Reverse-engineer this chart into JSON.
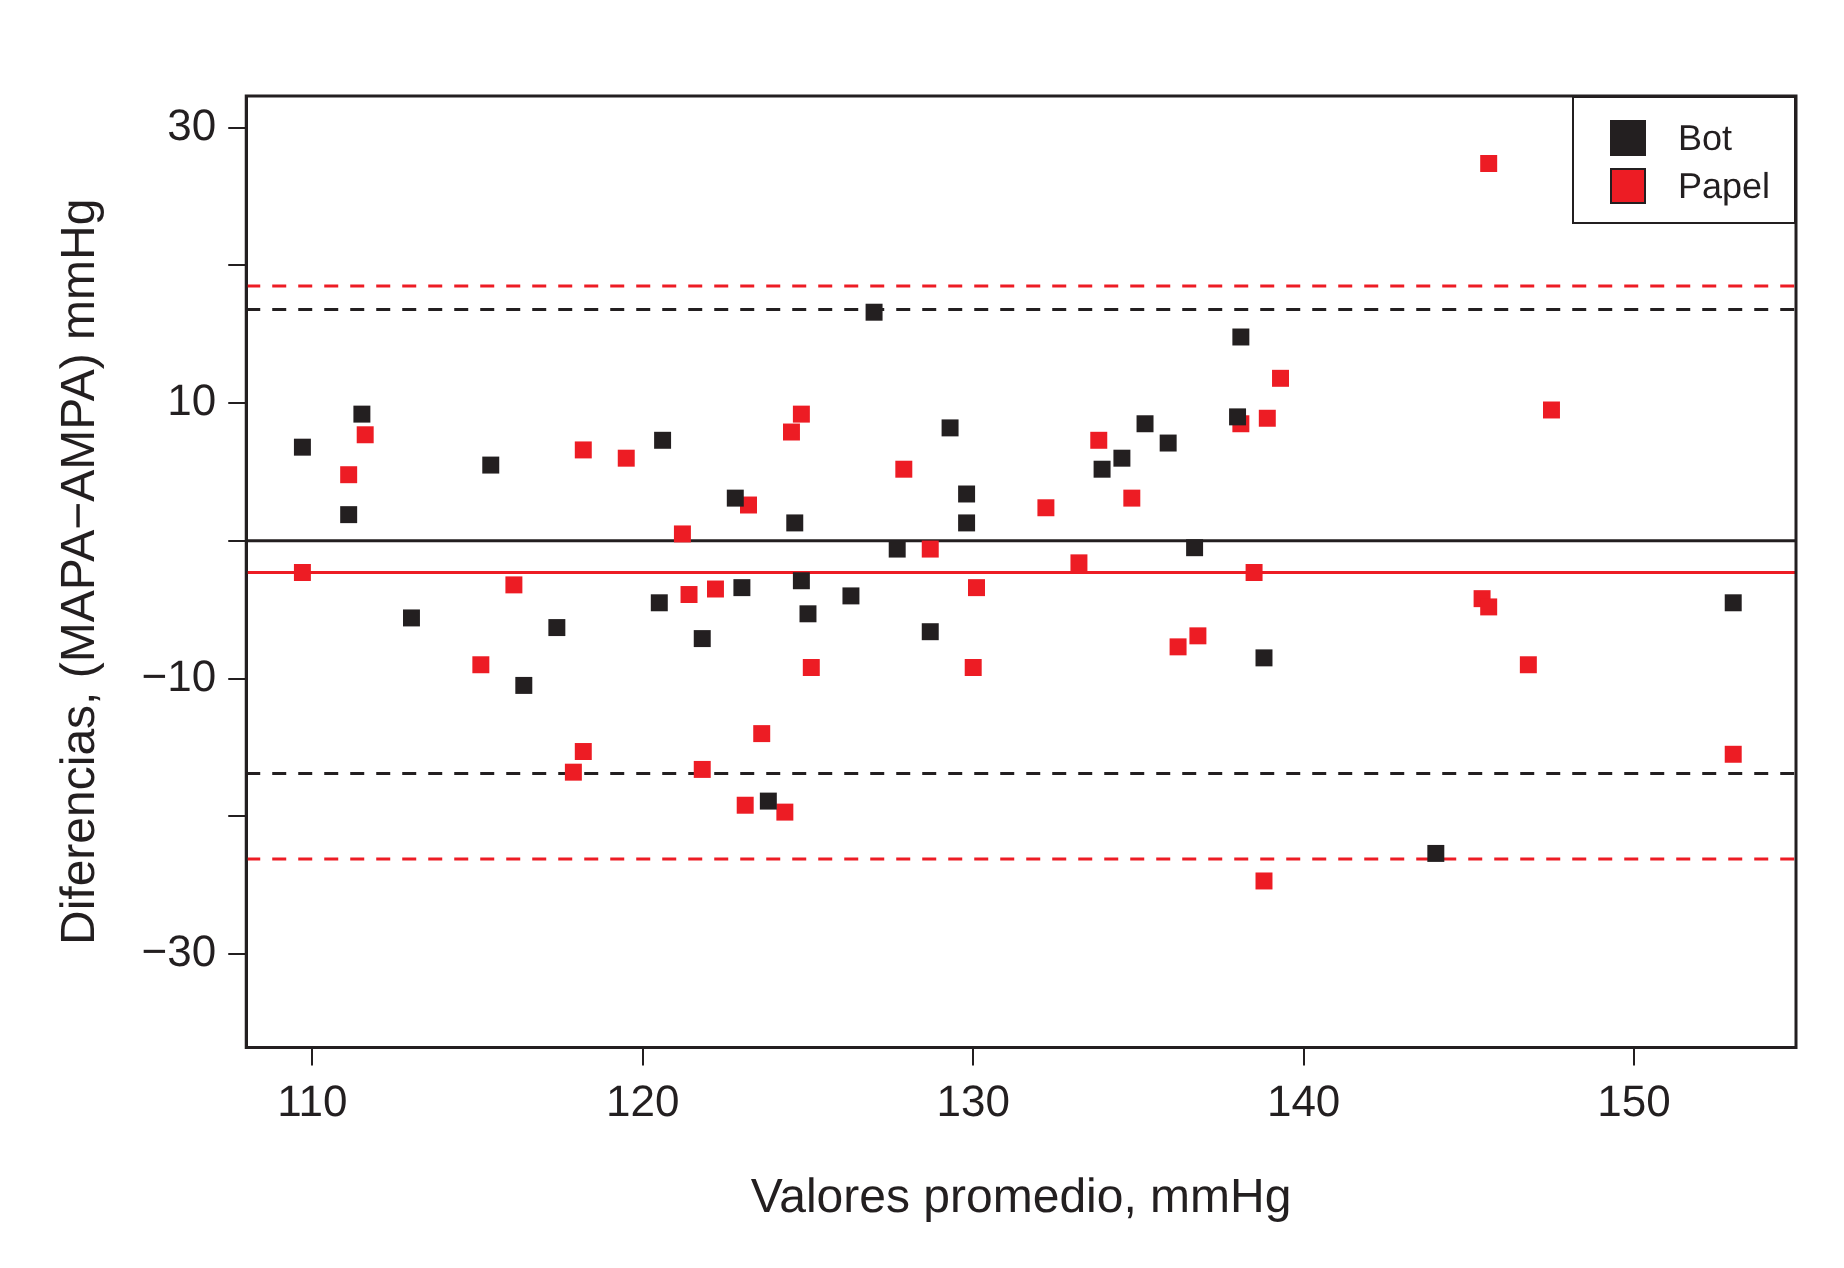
{
  "chart_data": {
    "type": "scatter",
    "xlabel": "Valores promedio, mmHg",
    "ylabel": "Diferencias, (MAPA−AMPA) mmHg",
    "marker": "square",
    "legend": "top right",
    "grid": false,
    "xlim": [
      108,
      154.9
    ],
    "ylim": [
      -36.8,
      32.3
    ],
    "xticks": [
      110,
      120,
      130,
      140,
      150
    ],
    "yticks": [
      -30,
      {
        "value": -20,
        "label": null
      },
      -10,
      {
        "value": 0,
        "label": null
      },
      10,
      {
        "value": 20,
        "label": null
      },
      30
    ],
    "series": [
      {
        "name": "Bot",
        "color": "#231f20",
        "x": [
          109.7,
          111.1,
          111.5,
          113.0,
          115.4,
          116.4,
          117.4,
          120.5,
          120.6,
          121.8,
          122.8,
          123.0,
          123.8,
          124.6,
          124.8,
          125.0,
          126.3,
          127.0,
          127.7,
          128.7,
          129.3,
          129.8,
          129.8,
          133.9,
          134.5,
          135.2,
          135.9,
          136.7,
          138.0,
          138.1,
          138.8,
          144.0,
          153.0
        ],
        "values": [
          6.8,
          1.9,
          9.2,
          -5.6,
          5.5,
          -10.5,
          -6.3,
          -4.5,
          7.3,
          -7.1,
          3.1,
          -3.4,
          -18.9,
          1.3,
          -2.9,
          -5.3,
          -4.0,
          16.6,
          -0.6,
          -6.6,
          8.2,
          3.4,
          1.3,
          5.2,
          6.0,
          8.5,
          7.1,
          -0.5,
          9.0,
          14.8,
          -8.5,
          -22.7,
          -4.5
        ]
      },
      {
        "name": "Papel",
        "color": "#ed1c24",
        "x": [
          109.7,
          111.1,
          111.6,
          115.1,
          116.1,
          117.9,
          118.2,
          118.2,
          119.5,
          121.2,
          121.4,
          122.2,
          121.8,
          123.2,
          123.1,
          123.6,
          124.3,
          124.5,
          124.8,
          125.1,
          127.9,
          128.7,
          130.1,
          130.0,
          132.2,
          133.2,
          133.8,
          134.8,
          136.2,
          136.8,
          138.1,
          138.5,
          138.8,
          138.9,
          139.3,
          145.4,
          145.6,
          145.6,
          146.8,
          147.5,
          153.0
        ],
        "values": [
          -2.3,
          4.8,
          7.7,
          -9.0,
          -3.2,
          -16.8,
          -15.3,
          6.6,
          6.0,
          0.5,
          -3.9,
          -3.5,
          -16.6,
          2.6,
          -19.2,
          -14.0,
          -19.7,
          7.9,
          9.2,
          -9.2,
          5.2,
          -0.6,
          -3.4,
          -9.2,
          2.4,
          -1.6,
          7.3,
          3.1,
          -7.7,
          -6.9,
          8.5,
          -2.3,
          -24.7,
          8.9,
          11.8,
          -4.2,
          -4.8,
          27.4,
          -9.0,
          9.5,
          -15.5
        ]
      }
    ],
    "ref_lines": [
      {
        "axis": "y",
        "value": 0,
        "color": "#231f20",
        "line_style": "solid"
      },
      {
        "axis": "y",
        "value": 16.8,
        "color": "#231f20",
        "line_style": "dashed"
      },
      {
        "axis": "y",
        "value": -16.9,
        "color": "#231f20",
        "line_style": "dashed"
      },
      {
        "axis": "y",
        "value": -2.3,
        "color": "#ed1c24",
        "line_style": "solid"
      },
      {
        "axis": "y",
        "value": 18.5,
        "color": "#ed1c24",
        "line_style": "dashed"
      },
      {
        "axis": "y",
        "value": -23.1,
        "color": "#ed1c24",
        "line_style": "dashed"
      }
    ]
  }
}
